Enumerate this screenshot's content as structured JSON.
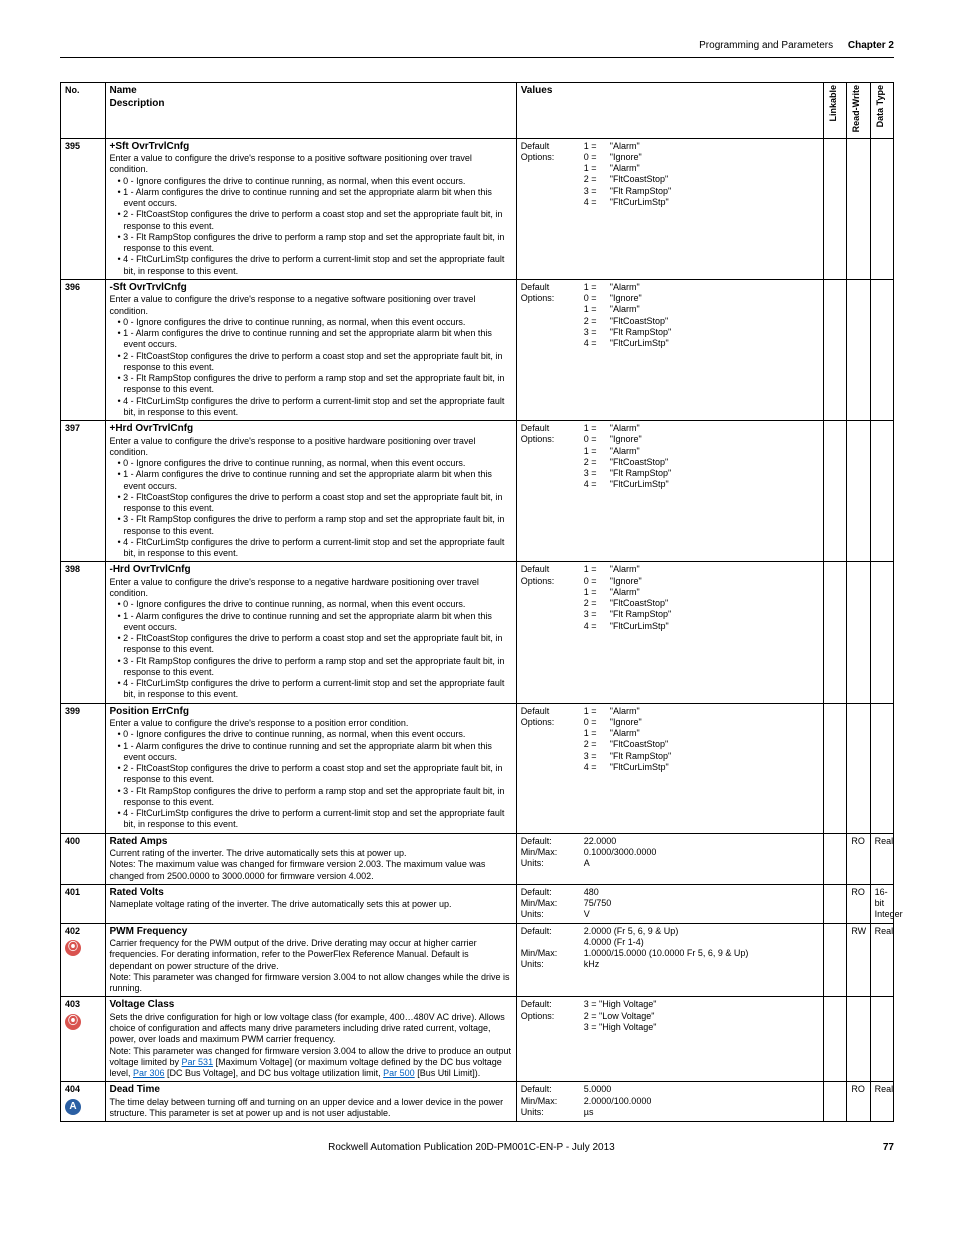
{
  "header": {
    "section": "Programming and Parameters",
    "chapter": "Chapter 2"
  },
  "columns": {
    "no": "No.",
    "name": "Name",
    "desc": "Description",
    "values": "Values",
    "linkable": "Linkable",
    "rw": "Read-Write",
    "dtype": "Data Type"
  },
  "shared_option_text": {
    "opt0": "0 - Ignore configures the drive to continue running, as normal, when this event occurs.",
    "opt1": "1 - Alarm configures the drive to continue running and set the appropriate alarm bit when this event occurs.",
    "opt2": "2 - FltCoastStop configures the drive to perform a coast stop and set the appropriate fault bit, in response to this event.",
    "opt3": "3 - Flt RampStop configures the drive to perform a ramp stop and set the appropriate fault bit, in response to this event.",
    "opt4": "4 - FltCurLimStp configures the drive to perform a current-limit stop and set the appropriate fault bit, in response to this event."
  },
  "shared_values_alarm": {
    "default": "1 =   \"Alarm\"",
    "options": [
      "0 =   \"Ignore\"",
      "1 =   \"Alarm\"",
      "2 =   \"FltCoastStop\"",
      "3 =   \"Flt RampStop\"",
      "4 =   \"FltCurLimStp\""
    ]
  },
  "rows": {
    "r395": {
      "no": "395",
      "name": "+Sft OvrTrvlCnfg",
      "intro": "Enter a value to configure the drive's response to a positive software positioning over travel condition."
    },
    "r396": {
      "no": "396",
      "name": "-Sft OvrTrvlCnfg",
      "intro": "Enter a value to configure the drive's response to a negative software positioning over travel condition."
    },
    "r397": {
      "no": "397",
      "name": "+Hrd OvrTrvlCnfg",
      "intro": "Enter a value to configure the drive's response to a positive hardware positioning over travel condition."
    },
    "r398": {
      "no": "398",
      "name": "-Hrd OvrTrvlCnfg",
      "intro": "Enter a value to configure the drive's response to a negative hardware positioning over travel condition."
    },
    "r399": {
      "no": "399",
      "name": "Position ErrCnfg",
      "intro": "Enter a value to configure the drive's response to a position error condition."
    },
    "r400": {
      "no": "400",
      "name": "Rated Amps",
      "desc": "Current rating of the inverter. The drive automatically sets this at power up.",
      "notes": "Notes: The maximum value was changed for firmware version 2.003. The maximum value was changed from 2500.0000 to 3000.0000 for firmware version 4.002.",
      "vlabels": "Default:\nMin/Max:\nUnits:",
      "vvals": "22.0000\n0.1000/3000.0000\nA",
      "rw": "RO",
      "dtype": "Real"
    },
    "r401": {
      "no": "401",
      "name": "Rated Volts",
      "desc": "Nameplate voltage rating of the inverter. The drive automatically sets this at power up.",
      "vlabels": "Default:\nMin/Max:\nUnits:",
      "vvals": "480\n75/750\nV",
      "rw": "RO",
      "dtype": "16-bit Integer"
    },
    "r402": {
      "no": "402",
      "name": "PWM Frequency",
      "desc": "Carrier frequency for the PWM output of the drive. Drive derating may occur at higher carrier frequencies. For derating information, refer to the PowerFlex Reference Manual. Default is dependant on power structure of the drive.",
      "notes": "Note: This parameter was changed for firmware version 3.004 to not allow changes while the drive is running.",
      "vlabels": "Default:\n\nMin/Max:\nUnits:",
      "vvals": "2.0000 (Fr 5, 6, 9 & Up)\n4.0000 (Fr 1-4)\n1.0000/15.0000 (10.0000 Fr 5, 6, 9 & Up)\nkHz",
      "rw": "RW",
      "dtype": "Real"
    },
    "r403": {
      "no": "403",
      "name": "Voltage Class",
      "desc1": "Sets the drive configuration for high or low voltage class (for example, 400…480V AC drive). Allows choice of configuration and affects many drive parameters including drive rated current, voltage, power, over loads and maximum PWM carrier frequency.",
      "desc2a": "Note: This parameter was changed for firmware version 3.004 to allow the drive to produce an output voltage limited by ",
      "link1": "Par 531",
      "desc2b": " [Maximum Voltage] (or maximum voltage defined by the DC bus voltage level, ",
      "link2": "Par 306",
      "desc2c": " [DC Bus Voltage], and DC bus voltage utilization limit, ",
      "link3": "Par 500",
      "desc2d": " [Bus Util Limit]).",
      "vlabels": "Default:\nOptions:",
      "vvals": "3 =   \"High Voltage\"\n2 =   \"Low Voltage\"\n3 =   \"High Voltage\""
    },
    "r404": {
      "no": "404",
      "name": "Dead Time",
      "desc": "The time delay between turning off and turning on an upper device and a lower device in the power structure. This parameter is set at power up and is not user adjustable.",
      "vlabels": "Default:\nMin/Max:\nUnits:",
      "vvals": "5.0000\n2.0000/100.0000\nµs",
      "rw": "RO",
      "dtype": "Real"
    }
  },
  "labels": {
    "default": "Default",
    "options": "Options:"
  },
  "footer": {
    "pub": "Rockwell Automation Publication 20D-PM001C-EN-P - July 2013",
    "page": "77"
  }
}
